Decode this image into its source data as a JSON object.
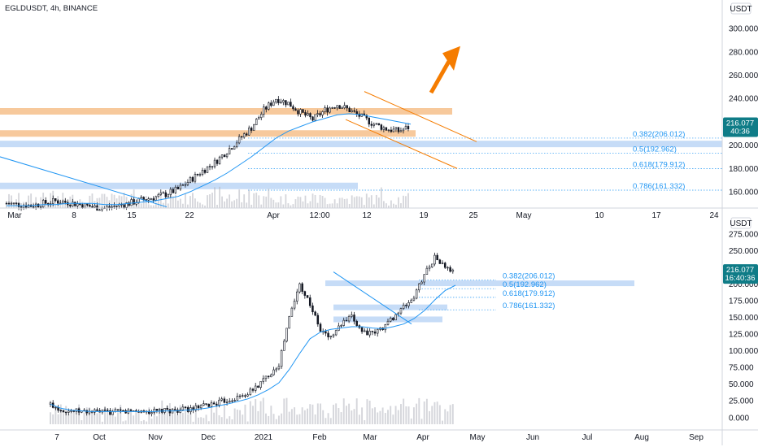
{
  "header": {
    "symbol_line": "EGLDUSDT, 4h, BINANCE"
  },
  "colors": {
    "up": "#131722",
    "down": "#131722",
    "up_fill": "#ffffff",
    "down_fill": "#131722",
    "ma": "#2196f3",
    "fib": "#2196f3",
    "zone_orange": "#f7c99c",
    "zone_blue": "#c6dcf7",
    "channel": "#f57c00",
    "arrow": "#f57c00",
    "tag_bg": "#0f7c87",
    "volume": "#b2b5be"
  },
  "chart_data": [
    {
      "type": "candlestick",
      "panel": "top",
      "currency": "USDT",
      "y_ticks": [
        "300.000",
        "280.000",
        "260.000",
        "240.000",
        "220.000",
        "200.000",
        "180.000",
        "160.000"
      ],
      "ylim": [
        146,
        312
      ],
      "x_ticks": [
        "Mar",
        "8",
        "15",
        "22",
        "Apr",
        "12:00",
        "12",
        "19",
        "25",
        "May",
        "10",
        "17",
        "24"
      ],
      "last_price": "216.077",
      "countdown": "40:36",
      "fib_levels": [
        {
          "label": "0.382(206.012)",
          "value": 206.012
        },
        {
          "label": "0.5(192.962)",
          "value": 192.962
        },
        {
          "label": "0.618(179.912)",
          "value": 179.912
        },
        {
          "label": "0.786(161.332)",
          "value": 161.332
        }
      ],
      "price_path": [
        150,
        149,
        148,
        150,
        152,
        151,
        149,
        147,
        146,
        148,
        150,
        153,
        155,
        158,
        162,
        170,
        178,
        185,
        195,
        205,
        215,
        230,
        240,
        236,
        228,
        222,
        230,
        235,
        230,
        224,
        218,
        214,
        212,
        216
      ],
      "ma_path": [
        148,
        148,
        148,
        149,
        149,
        150,
        150,
        150,
        149,
        149,
        150,
        151,
        152,
        154,
        156,
        160,
        165,
        170,
        176,
        183,
        190,
        198,
        206,
        212,
        216,
        220,
        223,
        226,
        227,
        226,
        224,
        222,
        220,
        218
      ]
    },
    {
      "type": "candlestick",
      "panel": "bottom",
      "currency": "USDT",
      "y_ticks": [
        "275.000",
        "250.000",
        "225.000",
        "200.000",
        "175.000",
        "150.000",
        "125.000",
        "100.000",
        "75.000",
        "50.000",
        "25.000",
        "0.000"
      ],
      "ylim": [
        -10,
        282
      ],
      "x_ticks": [
        "7",
        "Oct",
        "Nov",
        "Dec",
        "2021",
        "Feb",
        "Mar",
        "Apr",
        "May",
        "Jun",
        "Jul",
        "Aug",
        "Sep"
      ],
      "last_price": "216.077",
      "countdown": "16:40:36",
      "fib_levels": [
        {
          "label": "0.382(206.012)",
          "value": 206.012
        },
        {
          "label": "0.5(192.962)",
          "value": 192.962
        },
        {
          "label": "0.618(179.912)",
          "value": 179.912
        },
        {
          "label": "0.786(161.332)",
          "value": 161.332
        }
      ],
      "price_path": [
        20,
        12,
        10,
        9,
        9,
        8,
        8,
        9,
        10,
        9,
        9,
        10,
        11,
        12,
        14,
        18,
        22,
        26,
        30,
        36,
        48,
        64,
        80,
        150,
        200,
        170,
        130,
        120,
        140,
        150,
        130,
        125,
        135,
        150,
        165,
        180,
        215,
        240,
        225,
        216
      ],
      "ma_path": [
        20,
        14,
        11,
        10,
        9,
        9,
        9,
        9,
        9,
        9,
        9,
        10,
        10,
        11,
        12,
        14,
        17,
        20,
        24,
        28,
        34,
        42,
        52,
        72,
        96,
        118,
        128,
        132,
        134,
        136,
        136,
        134,
        133,
        136,
        140,
        148,
        160,
        176,
        190,
        198
      ]
    }
  ]
}
